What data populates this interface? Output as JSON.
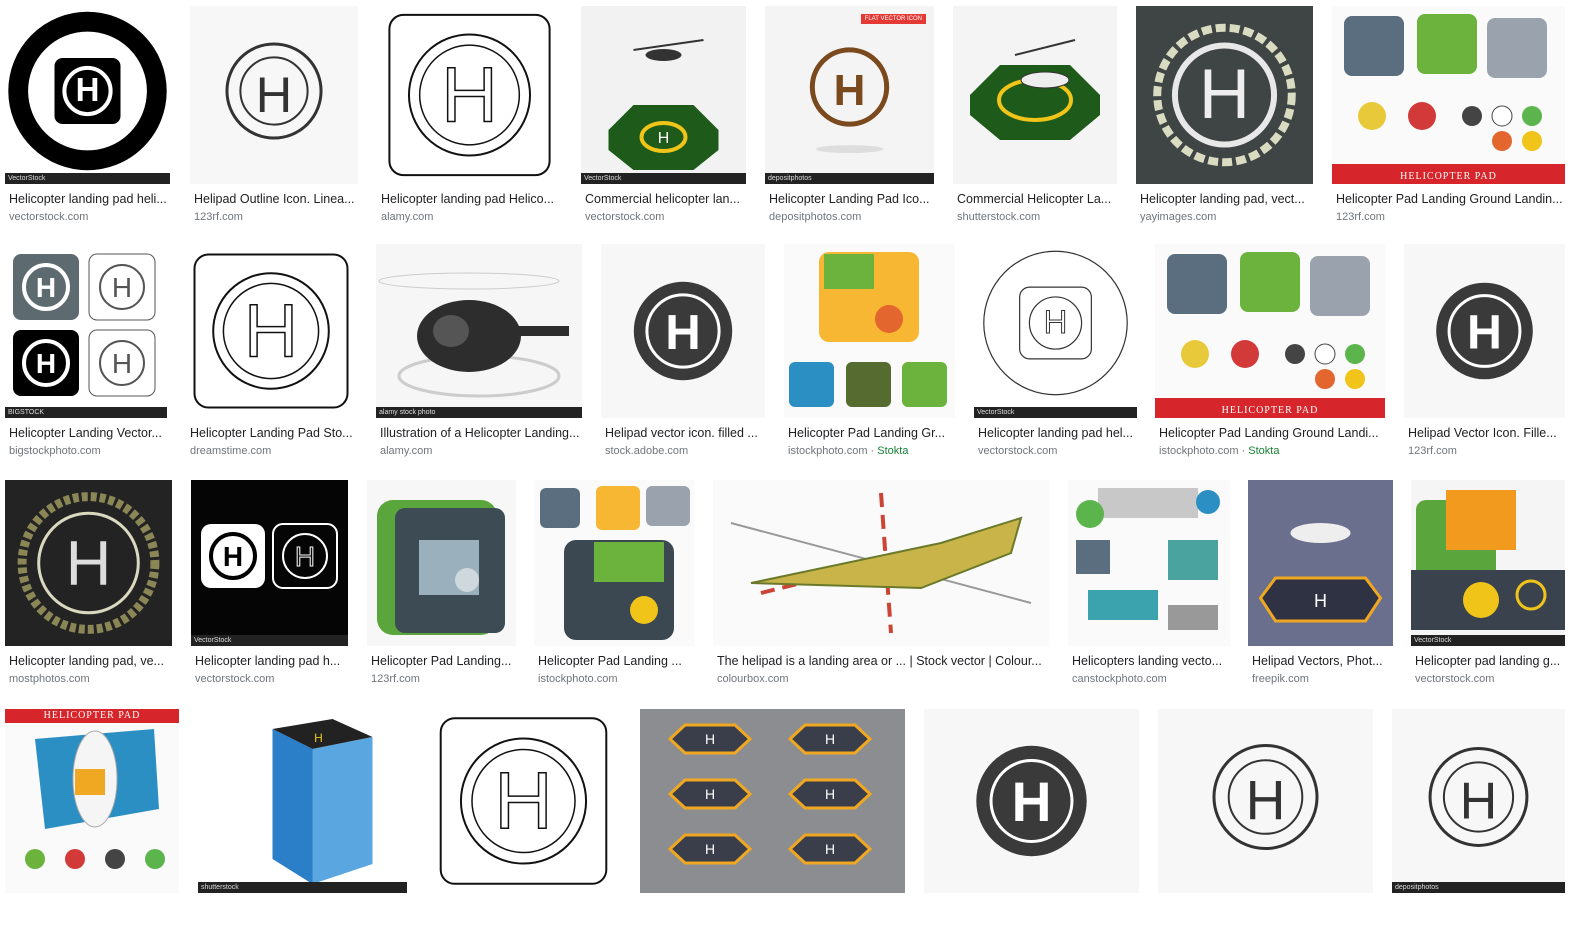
{
  "results": [
    {
      "title": "Helicopter landing pad heli...",
      "source": "vectorstock.com",
      "icon": "h-pad-black-ring-icon",
      "watermark": "VectorStock"
    },
    {
      "title": "Helipad Outline Icon. Linea...",
      "source": "123rf.com",
      "icon": "h-pad-outline-icon"
    },
    {
      "title": "Helicopter landing pad Helico...",
      "source": "alamy.com",
      "icon": "h-pad-square-outline-icon"
    },
    {
      "title": "Commercial helicopter lan...",
      "source": "vectorstock.com",
      "icon": "green-octagon-helipad-icon",
      "watermark": "VectorStock"
    },
    {
      "title": "Helicopter Landing Pad Ico...",
      "source": "depositphotos.com",
      "icon": "brown-h-circle-icon",
      "badge": "FLAT VECTOR ICON",
      "watermark": "depositphotos"
    },
    {
      "title": "Commercial Helicopter La...",
      "source": "shutterstock.com",
      "icon": "helicopter-on-pad-icon"
    },
    {
      "title": "Helicopter landing pad, vect...",
      "source": "yayimages.com",
      "icon": "asphalt-helipad-icon"
    },
    {
      "title": "Helicopter Pad Landing Ground Landin...",
      "source": "123rf.com",
      "icon": "helicopter-pad-set-icon",
      "banner": "HELICOPTER PAD"
    },
    {
      "title": "Helicopter Landing Vector...",
      "source": "bigstockphoto.com",
      "icon": "h-pad-four-variants-icon",
      "watermark": "BIGSTOCK"
    },
    {
      "title": "Helicopter Landing Pad Sto...",
      "source": "dreamstime.com",
      "icon": "h-pad-square-outline-icon"
    },
    {
      "title": "Illustration of a Helicopter Landing...",
      "source": "alamy.com",
      "icon": "black-helicopter-icon",
      "watermark": "alamy stock photo"
    },
    {
      "title": "Helipad vector icon. filled ...",
      "source": "stock.adobe.com",
      "icon": "dark-h-circle-icon"
    },
    {
      "title": "Helicopter Pad Landing Gr...",
      "source": "istockphoto.com",
      "extra": "Stokta",
      "icon": "island-pads-icon"
    },
    {
      "title": "Helicopter landing pad hel...",
      "source": "vectorstock.com",
      "icon": "thin-h-pad-icon",
      "watermark": "VectorStock"
    },
    {
      "title": "Helicopter Pad Landing Ground Landi...",
      "source": "istockphoto.com",
      "extra": "Stokta",
      "icon": "helicopter-pad-set-icon",
      "banner": "HELICOPTER PAD"
    },
    {
      "title": "Helipad Vector Icon. Fille...",
      "source": "123rf.com",
      "icon": "dark-h-circle-icon"
    },
    {
      "title": "Helicopter landing pad, ve...",
      "source": "mostphotos.com",
      "icon": "dark-textured-helipad-icon"
    },
    {
      "title": "Helicopter landing pad h...",
      "source": "vectorstock.com",
      "icon": "black-white-h-pair-icon",
      "watermark": "VectorStock"
    },
    {
      "title": "Helicopter Pad Landing...",
      "source": "123rf.com",
      "icon": "rooftop-pad-icon"
    },
    {
      "title": "Helicopter Pad Landing ...",
      "source": "istockphoto.com",
      "icon": "pads-map-icon"
    },
    {
      "title": "The helipad is a landing area or ... | Stock vector | Colour...",
      "source": "colourbox.com",
      "icon": "yellow-helicopter-icon"
    },
    {
      "title": "Helicopters landing vecto...",
      "source": "canstockphoto.com",
      "icon": "pads-collection-icon"
    },
    {
      "title": "Helipad Vectors, Phot...",
      "source": "freepik.com",
      "icon": "purple-helipad-icon"
    },
    {
      "title": "Helicopter pad landing g...",
      "source": "vectorstock.com",
      "icon": "road-pad-icon",
      "watermark": "VectorStock"
    },
    {
      "title": "",
      "source": "",
      "icon": "boat-pad-icon",
      "banner": "HELICOPTER PAD"
    },
    {
      "title": "",
      "source": "",
      "icon": "building-helipad-icon",
      "watermark": "shutterstock"
    },
    {
      "title": "",
      "source": "",
      "icon": "h-pad-square-outline-icon"
    },
    {
      "title": "",
      "source": "",
      "icon": "octagon-pads-grid-icon"
    },
    {
      "title": "",
      "source": "",
      "icon": "dark-h-circle-icon"
    },
    {
      "title": "",
      "source": "",
      "icon": "h-pad-outline-icon"
    },
    {
      "title": "",
      "source": "",
      "icon": "h-pad-outline-icon",
      "watermark": "depositphotos"
    }
  ]
}
